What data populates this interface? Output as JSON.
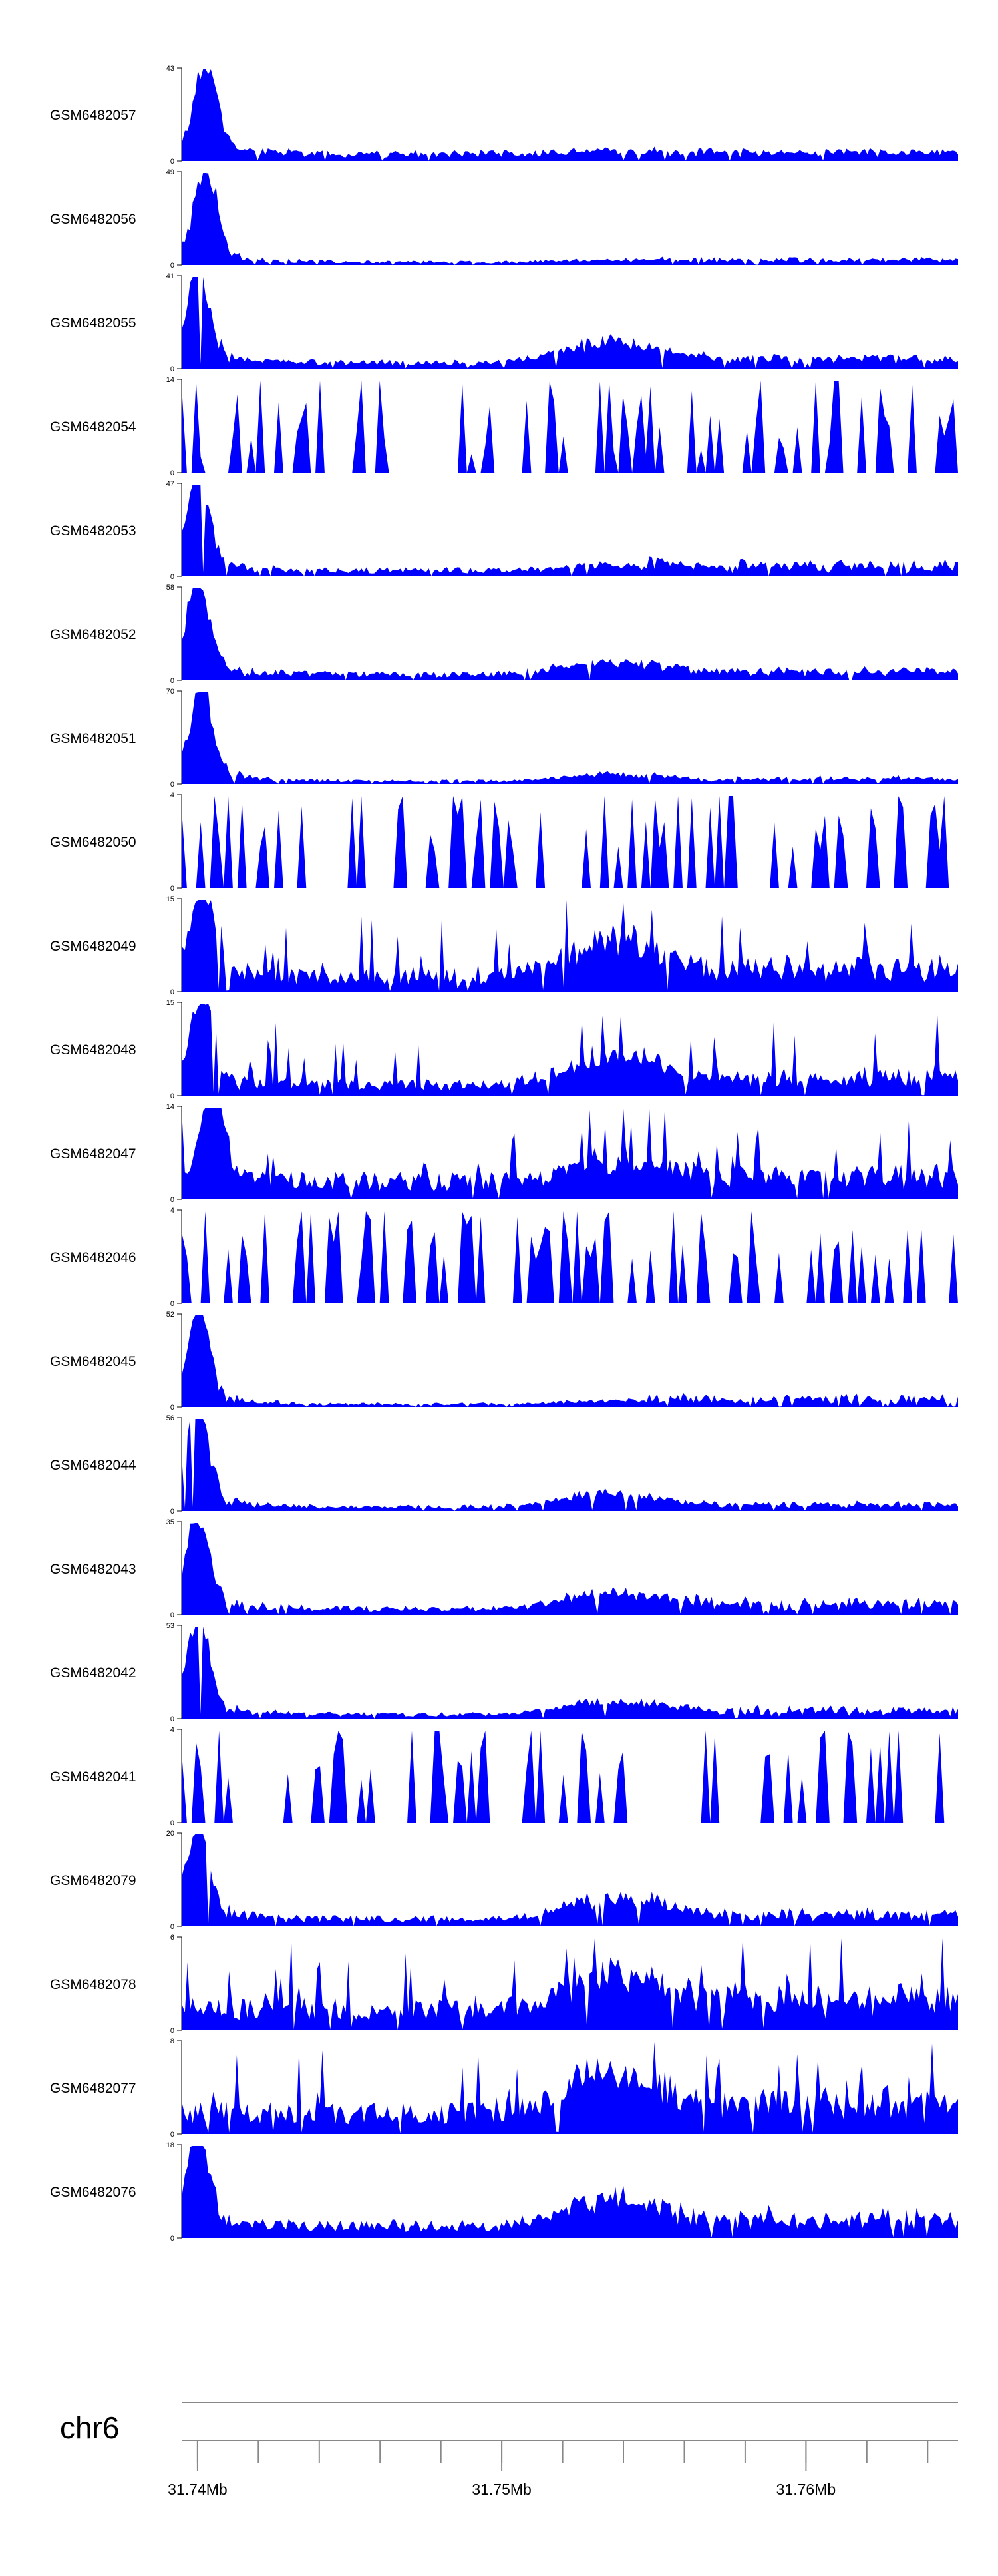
{
  "chart_data": {
    "type": "area",
    "fill_color": "#0000ff",
    "axis_color": "#000000",
    "chromosome": "chr6",
    "x_range_mb": [
      31.7395,
      31.765
    ],
    "axis_ticks_mb": [
      31.74,
      31.742,
      31.744,
      31.746,
      31.748,
      31.75,
      31.752,
      31.754,
      31.756,
      31.758,
      31.76,
      31.762,
      31.764
    ],
    "axis_labels": [
      {
        "pos": 31.74,
        "text": "31.74Mb"
      },
      {
        "pos": 31.75,
        "text": "31.75Mb"
      },
      {
        "pos": 31.76,
        "text": "31.76Mb"
      }
    ],
    "tracks": [
      {
        "name": "GSM6482057",
        "ymax": 43,
        "pattern": "peak",
        "seed": 1,
        "peak_at": 0.03,
        "bg": 0.12,
        "midbump": 0.05,
        "tail": 0.08,
        "spiky": false
      },
      {
        "name": "GSM6482056",
        "ymax": 49,
        "pattern": "peak",
        "seed": 2,
        "peak_at": 0.03,
        "bg": 0.05,
        "midbump": 0.03,
        "tail": 0.1,
        "spiky": false
      },
      {
        "name": "GSM6482055",
        "ymax": 41,
        "pattern": "peak",
        "seed": 3,
        "peak_at": 0.02,
        "bg": 0.1,
        "midbump": 0.3,
        "tail": 0.2,
        "spiky": false
      },
      {
        "name": "GSM6482054",
        "ymax": 14,
        "pattern": "sparse",
        "seed": 4,
        "peak_at": 0.03,
        "bg": 0.15,
        "midbump": 0.3,
        "tail": 0.6,
        "spiky": true
      },
      {
        "name": "GSM6482053",
        "ymax": 47,
        "pattern": "peak",
        "seed": 5,
        "peak_at": 0.02,
        "bg": 0.1,
        "midbump": 0.08,
        "tail": 0.25,
        "spiky": false
      },
      {
        "name": "GSM6482052",
        "ymax": 58,
        "pattern": "peak",
        "seed": 6,
        "peak_at": 0.02,
        "bg": 0.1,
        "midbump": 0.2,
        "tail": 0.15,
        "spiky": false
      },
      {
        "name": "GSM6482051",
        "ymax": 70,
        "pattern": "peak",
        "seed": 7,
        "peak_at": 0.025,
        "bg": 0.05,
        "midbump": 0.1,
        "tail": 0.12,
        "spiky": false
      },
      {
        "name": "GSM6482050",
        "ymax": 4,
        "pattern": "sparse",
        "seed": 8,
        "peak_at": 0.0,
        "bg": 0.4,
        "midbump": 0.0,
        "tail": 0.5,
        "spiky": true
      },
      {
        "name": "GSM6482049",
        "ymax": 15,
        "pattern": "noisy",
        "seed": 9,
        "peak_at": 0.025,
        "bg": 0.25,
        "midbump": 0.5,
        "tail": 0.4,
        "spiky": true
      },
      {
        "name": "GSM6482048",
        "ymax": 15,
        "pattern": "noisy",
        "seed": 10,
        "peak_at": 0.025,
        "bg": 0.18,
        "midbump": 0.4,
        "tail": 0.3,
        "spiky": true
      },
      {
        "name": "GSM6482047",
        "ymax": 14,
        "pattern": "noisy",
        "seed": 11,
        "peak_at": 0.04,
        "bg": 0.3,
        "midbump": 0.3,
        "tail": 0.35,
        "spiky": true
      },
      {
        "name": "GSM6482046",
        "ymax": 4,
        "pattern": "sparse",
        "seed": 12,
        "peak_at": 0.0,
        "bg": 0.45,
        "midbump": 0.0,
        "tail": 0.55,
        "spiky": true
      },
      {
        "name": "GSM6482045",
        "ymax": 52,
        "pattern": "peak",
        "seed": 13,
        "peak_at": 0.02,
        "bg": 0.05,
        "midbump": 0.05,
        "tail": 0.25,
        "spiky": false
      },
      {
        "name": "GSM6482044",
        "ymax": 56,
        "pattern": "peak",
        "seed": 14,
        "peak_at": 0.02,
        "bg": 0.07,
        "midbump": 0.2,
        "tail": 0.12,
        "spiky": false
      },
      {
        "name": "GSM6482043",
        "ymax": 35,
        "pattern": "peak",
        "seed": 15,
        "peak_at": 0.02,
        "bg": 0.1,
        "midbump": 0.25,
        "tail": 0.3,
        "spiky": false
      },
      {
        "name": "GSM6482042",
        "ymax": 53,
        "pattern": "peak",
        "seed": 16,
        "peak_at": 0.02,
        "bg": 0.07,
        "midbump": 0.2,
        "tail": 0.2,
        "spiky": false
      },
      {
        "name": "GSM6482041",
        "ymax": 4,
        "pattern": "sparse",
        "seed": 17,
        "peak_at": 0.0,
        "bg": 0.45,
        "midbump": 0.0,
        "tail": 0.55,
        "spiky": true
      },
      {
        "name": "GSM6482079",
        "ymax": 20,
        "pattern": "noisy",
        "seed": 18,
        "peak_at": 0.02,
        "bg": 0.12,
        "midbump": 0.3,
        "tail": 0.25,
        "spiky": false
      },
      {
        "name": "GSM6482078",
        "ymax": 6,
        "pattern": "noisy",
        "seed": 19,
        "peak_at": 0.0,
        "bg": 0.35,
        "midbump": 0.5,
        "tail": 0.55,
        "spiky": true
      },
      {
        "name": "GSM6482077",
        "ymax": 8,
        "pattern": "noisy",
        "seed": 20,
        "peak_at": 0.0,
        "bg": 0.35,
        "midbump": 0.5,
        "tail": 0.5,
        "spiky": true
      },
      {
        "name": "GSM6482076",
        "ymax": 18,
        "pattern": "noisy",
        "seed": 21,
        "peak_at": 0.02,
        "bg": 0.2,
        "midbump": 0.4,
        "tail": 0.4,
        "spiky": false
      }
    ]
  }
}
